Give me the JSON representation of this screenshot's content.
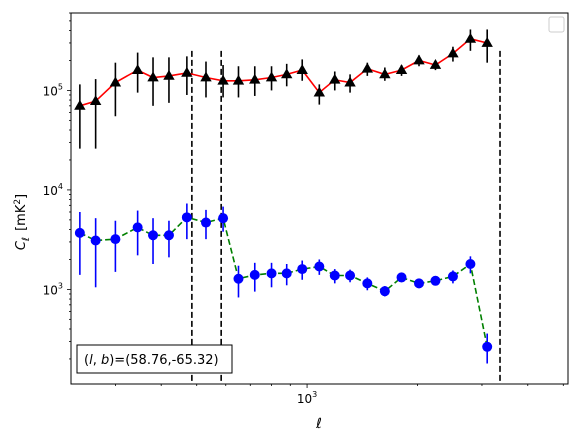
{
  "chart_data": {
    "type": "line",
    "xlabel": "ℓ",
    "ylabel_main": "C",
    "ylabel_sub": "ℓ",
    "ylabel_unit": "[mK",
    "ylabel_unit_sup": "2",
    "ylabel_unit_close": "]",
    "x_scale": "log",
    "y_scale": "log",
    "xlim": [
      227,
      5150
    ],
    "ylim": [
      112,
      600000
    ],
    "x_tick_labels": [
      {
        "value": 1000,
        "base": "10",
        "exp": "3"
      }
    ],
    "y_tick_labels": [
      {
        "value": 1000,
        "base": "10",
        "exp": "3"
      },
      {
        "value": 10000,
        "base": "10",
        "exp": "4"
      },
      {
        "value": 100000,
        "base": "10",
        "exp": "5"
      }
    ],
    "grid": false,
    "legend": "upper-right (empty)",
    "annotation": "(l, b)=(58.76,-65.32)",
    "annotation_prefix": "(",
    "annotation_l": "l",
    "annotation_sep": ", ",
    "annotation_b": "b",
    "annotation_suffix": ")=(58.76,-65.32)",
    "vlines": [
      {
        "x": 485,
        "y_top": 250000
      },
      {
        "x": 583,
        "y_top": 250000
      },
      {
        "x": 3360,
        "y_top": 250000
      }
    ],
    "series": [
      {
        "marker": "triangle",
        "marker_color": "#000000",
        "line_color": "#ff0000",
        "line_style": "solid",
        "points": [
          {
            "x": 240,
            "y": 70000,
            "lo": 26000,
            "hi": 115000
          },
          {
            "x": 265,
            "y": 78000,
            "lo": 26000,
            "hi": 130000
          },
          {
            "x": 300,
            "y": 120000,
            "lo": 55000,
            "hi": 190000
          },
          {
            "x": 345,
            "y": 160000,
            "lo": 95000,
            "hi": 240000
          },
          {
            "x": 380,
            "y": 135000,
            "lo": 70000,
            "hi": 215000
          },
          {
            "x": 420,
            "y": 140000,
            "lo": 75000,
            "hi": 215000
          },
          {
            "x": 470,
            "y": 150000,
            "lo": 90000,
            "hi": 220000
          },
          {
            "x": 530,
            "y": 135000,
            "lo": 85000,
            "hi": 195000
          },
          {
            "x": 590,
            "y": 125000,
            "lo": 85000,
            "hi": 180000
          },
          {
            "x": 650,
            "y": 125000,
            "lo": 85000,
            "hi": 175000
          },
          {
            "x": 720,
            "y": 128000,
            "lo": 88000,
            "hi": 175000
          },
          {
            "x": 800,
            "y": 135000,
            "lo": 100000,
            "hi": 175000
          },
          {
            "x": 880,
            "y": 145000,
            "lo": 110000,
            "hi": 185000
          },
          {
            "x": 970,
            "y": 160000,
            "lo": 125000,
            "hi": 205000
          },
          {
            "x": 1080,
            "y": 95000,
            "lo": 72000,
            "hi": 115000
          },
          {
            "x": 1190,
            "y": 128000,
            "lo": 100000,
            "hi": 155000
          },
          {
            "x": 1310,
            "y": 120000,
            "lo": 95000,
            "hi": 145000
          },
          {
            "x": 1460,
            "y": 165000,
            "lo": 140000,
            "hi": 190000
          },
          {
            "x": 1630,
            "y": 145000,
            "lo": 125000,
            "hi": 170000
          },
          {
            "x": 1810,
            "y": 160000,
            "lo": 140000,
            "hi": 180000
          },
          {
            "x": 2020,
            "y": 200000,
            "lo": 175000,
            "hi": 225000
          },
          {
            "x": 2240,
            "y": 180000,
            "lo": 160000,
            "hi": 200000
          },
          {
            "x": 2500,
            "y": 235000,
            "lo": 195000,
            "hi": 275000
          },
          {
            "x": 2790,
            "y": 330000,
            "lo": 250000,
            "hi": 410000
          },
          {
            "x": 3100,
            "y": 300000,
            "lo": 190000,
            "hi": 410000
          }
        ]
      },
      {
        "marker": "circle",
        "marker_color": "#0000ff",
        "line_color": "#008000",
        "line_style": "dashed",
        "points": [
          {
            "x": 240,
            "y": 3700,
            "lo": 1400,
            "hi": 6000
          },
          {
            "x": 265,
            "y": 3100,
            "lo": 1050,
            "hi": 5200
          },
          {
            "x": 300,
            "y": 3200,
            "lo": 1500,
            "hi": 4900
          },
          {
            "x": 345,
            "y": 4200,
            "lo": 2200,
            "hi": 6200
          },
          {
            "x": 380,
            "y": 3500,
            "lo": 1800,
            "hi": 5200
          },
          {
            "x": 420,
            "y": 3500,
            "lo": 2100,
            "hi": 4900
          },
          {
            "x": 470,
            "y": 5300,
            "lo": 3200,
            "hi": 7300
          },
          {
            "x": 530,
            "y": 4700,
            "lo": 3200,
            "hi": 6300
          },
          {
            "x": 590,
            "y": 5200,
            "lo": 3800,
            "hi": 6800
          },
          {
            "x": 650,
            "y": 1280,
            "lo": 830,
            "hi": 1730
          },
          {
            "x": 720,
            "y": 1400,
            "lo": 950,
            "hi": 1850
          },
          {
            "x": 800,
            "y": 1450,
            "lo": 1050,
            "hi": 1850
          },
          {
            "x": 880,
            "y": 1450,
            "lo": 1100,
            "hi": 1800
          },
          {
            "x": 970,
            "y": 1600,
            "lo": 1250,
            "hi": 1950
          },
          {
            "x": 1080,
            "y": 1700,
            "lo": 1400,
            "hi": 2000
          },
          {
            "x": 1190,
            "y": 1380,
            "lo": 1150,
            "hi": 1600
          },
          {
            "x": 1310,
            "y": 1380,
            "lo": 1180,
            "hi": 1580
          },
          {
            "x": 1460,
            "y": 1150,
            "lo": 980,
            "hi": 1320
          },
          {
            "x": 1630,
            "y": 960,
            "lo": 850,
            "hi": 1080
          },
          {
            "x": 1810,
            "y": 1320,
            "lo": 1180,
            "hi": 1460
          },
          {
            "x": 2020,
            "y": 1150,
            "lo": 1030,
            "hi": 1270
          },
          {
            "x": 2240,
            "y": 1220,
            "lo": 1100,
            "hi": 1340
          },
          {
            "x": 2500,
            "y": 1350,
            "lo": 1150,
            "hi": 1550
          },
          {
            "x": 2790,
            "y": 1800,
            "lo": 1450,
            "hi": 2150
          },
          {
            "x": 3100,
            "y": 265,
            "lo": 180,
            "hi": 360
          }
        ]
      }
    ]
  }
}
